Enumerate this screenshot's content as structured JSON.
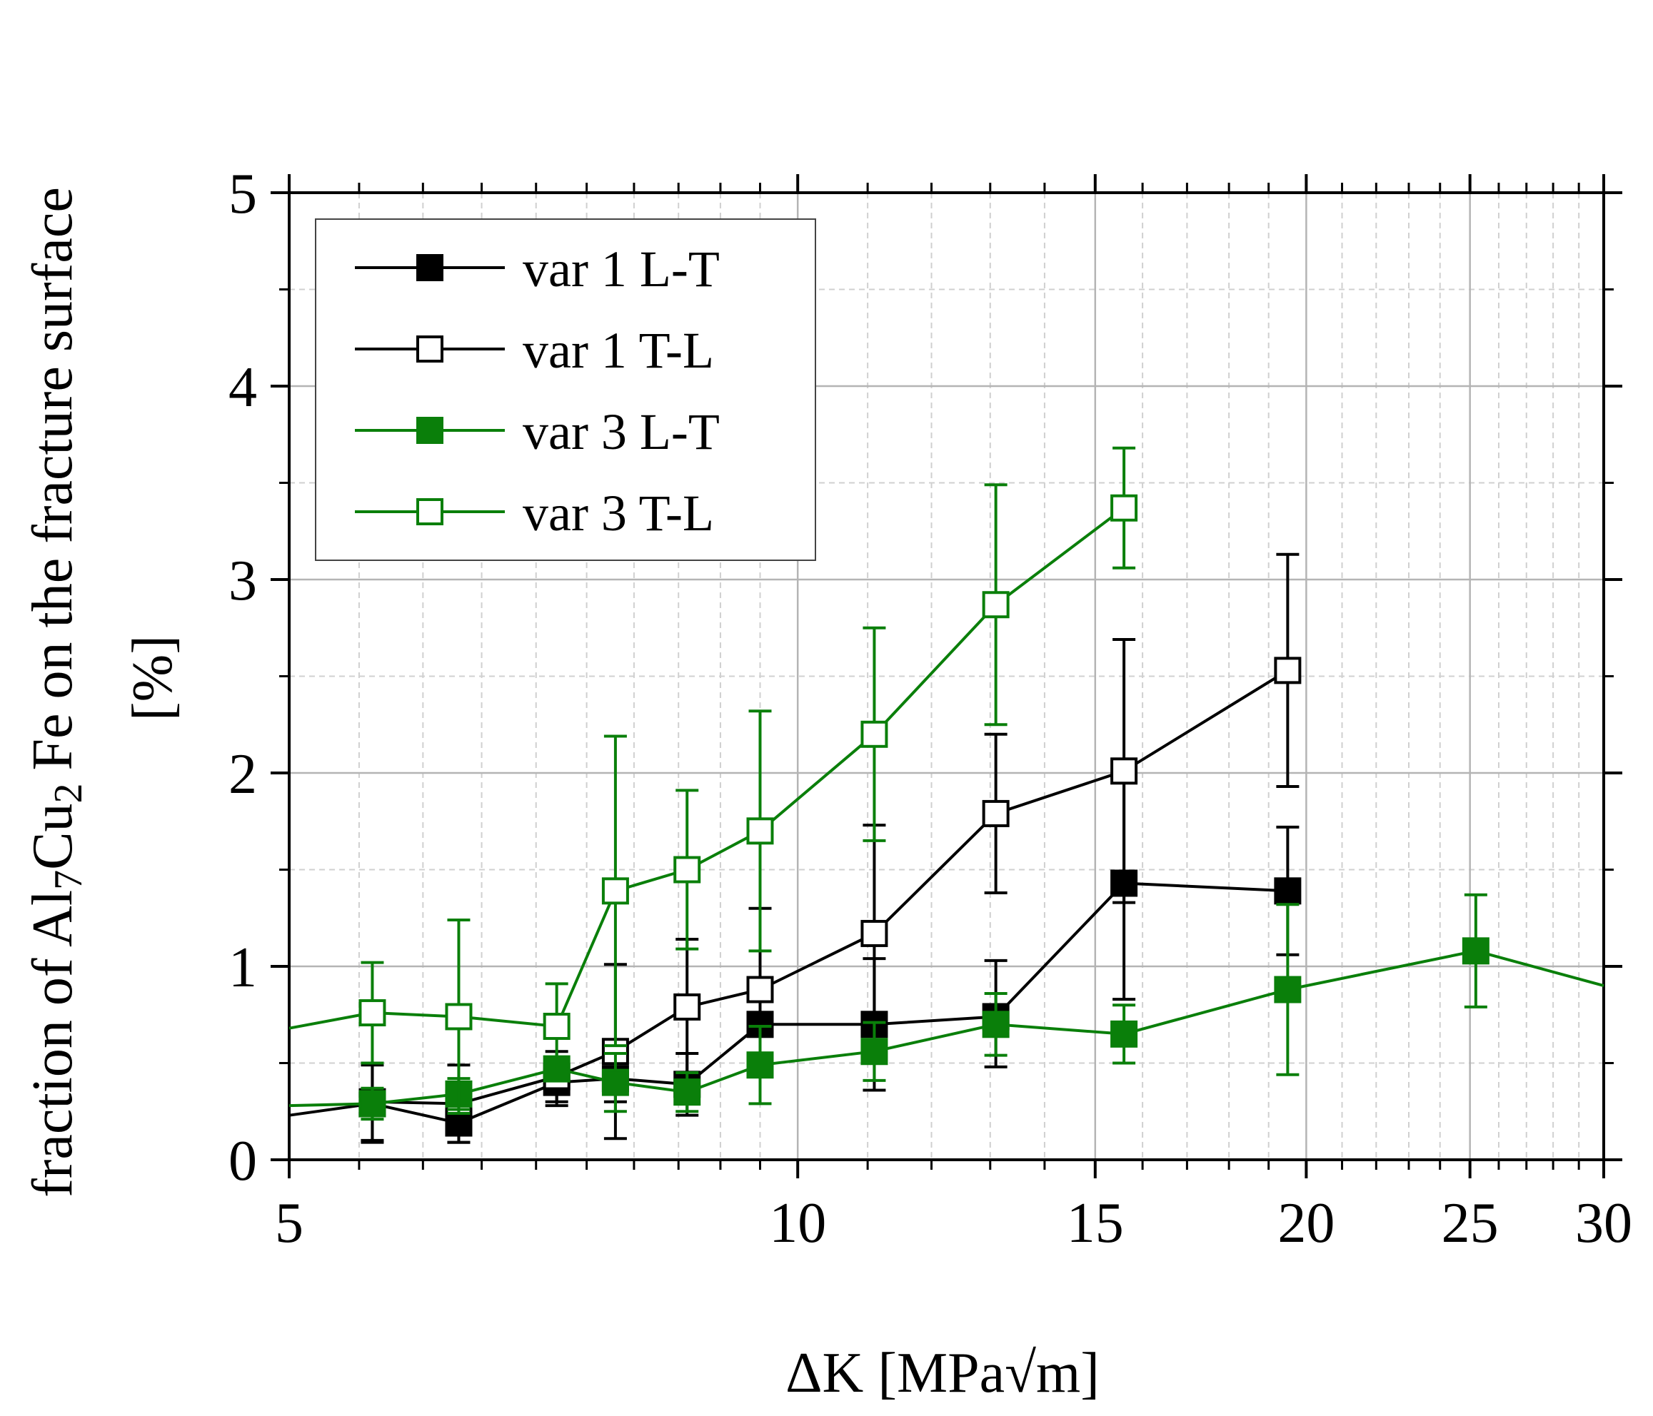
{
  "chart_data": {
    "type": "line",
    "title": "",
    "xlabel": "ΔK [MPa√m]",
    "ylabel_parts": {
      "prefix": "fraction of Al",
      "sub1": "7",
      "mid": "Cu",
      "sub2": "2",
      "suffix": "Fe on the fracture surface",
      "unit": "[%]"
    },
    "x_scale": "log",
    "xlim": [
      5,
      30
    ],
    "ylim": [
      0,
      5
    ],
    "x_ticks": [
      5,
      10,
      15,
      20,
      25,
      30
    ],
    "y_ticks": [
      0,
      1,
      2,
      3,
      4,
      5
    ],
    "grid": true,
    "legend_position": "top-left",
    "series": [
      {
        "name": "var 1 L-T",
        "color": "#000000",
        "marker": "filled-square",
        "x": [
          5.0,
          5.6,
          6.3,
          7.2,
          7.8,
          8.6,
          9.5,
          11.1,
          13.1,
          15.6,
          19.5
        ],
        "y": [
          0.23,
          0.29,
          0.19,
          0.4,
          0.42,
          0.39,
          0.7,
          0.7,
          0.74,
          1.43,
          1.39
        ],
        "err_low": [
          null,
          0.2,
          0.1,
          0.12,
          0.12,
          0.16,
          0.24,
          0.34,
          0.26,
          0.6,
          0.33
        ],
        "err_high": [
          null,
          0.2,
          0.2,
          0.12,
          0.12,
          0.16,
          0.24,
          0.34,
          0.29,
          0.6,
          0.33
        ]
      },
      {
        "name": "var 1 T-L",
        "color": "#000000",
        "marker": "open-square",
        "x": [
          5.6,
          6.3,
          7.2,
          7.8,
          8.6,
          9.5,
          11.1,
          13.1,
          15.6,
          19.5
        ],
        "y": [
          0.3,
          0.29,
          0.43,
          0.56,
          0.79,
          0.88,
          1.17,
          1.79,
          2.01,
          2.53
        ],
        "err_low": [
          0.2,
          0.2,
          0.13,
          0.45,
          0.35,
          0.42,
          0.56,
          0.41,
          0.68,
          0.6
        ],
        "err_high": [
          0.2,
          0.2,
          0.13,
          0.45,
          0.35,
          0.42,
          0.56,
          0.41,
          0.68,
          0.6
        ]
      },
      {
        "name": "var 3 L-T",
        "color": "#0a7f0a",
        "marker": "filled-square",
        "x": [
          5.0,
          5.6,
          6.3,
          7.2,
          7.8,
          8.6,
          9.5,
          11.1,
          13.1,
          15.6,
          19.5,
          25.2,
          30.0
        ],
        "y": [
          0.28,
          0.29,
          0.34,
          0.47,
          0.4,
          0.35,
          0.49,
          0.56,
          0.7,
          0.65,
          0.88,
          1.08,
          0.9
        ],
        "err_low": [
          null,
          0.08,
          0.08,
          0.05,
          0.15,
          0.1,
          0.2,
          0.15,
          0.16,
          0.15,
          0.44,
          0.29,
          null
        ],
        "err_high": [
          null,
          0.08,
          0.08,
          0.05,
          0.15,
          0.1,
          0.2,
          0.15,
          0.16,
          0.15,
          0.44,
          0.29,
          null
        ]
      },
      {
        "name": "var 3 T-L",
        "color": "#0a7f0a",
        "marker": "open-square",
        "x": [
          5.0,
          5.6,
          6.3,
          7.2,
          7.8,
          8.6,
          9.5,
          11.1,
          13.1,
          15.6
        ],
        "y": [
          0.68,
          0.76,
          0.74,
          0.69,
          1.39,
          1.5,
          1.7,
          2.2,
          2.87,
          3.37
        ],
        "err_low": [
          null,
          0.26,
          0.5,
          0.22,
          0.8,
          0.41,
          0.62,
          0.55,
          0.62,
          0.31
        ],
        "err_high": [
          null,
          0.26,
          0.5,
          0.22,
          0.8,
          0.41,
          0.62,
          0.55,
          0.62,
          0.31
        ]
      }
    ]
  }
}
